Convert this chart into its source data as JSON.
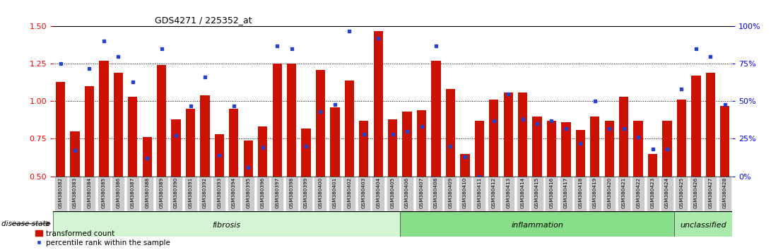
{
  "title": "GDS4271 / 225352_at",
  "samples": [
    "GSM380382",
    "GSM380383",
    "GSM380384",
    "GSM380385",
    "GSM380386",
    "GSM380387",
    "GSM380388",
    "GSM380389",
    "GSM380390",
    "GSM380391",
    "GSM380392",
    "GSM380393",
    "GSM380394",
    "GSM380395",
    "GSM380396",
    "GSM380397",
    "GSM380398",
    "GSM380399",
    "GSM380400",
    "GSM380401",
    "GSM380402",
    "GSM380403",
    "GSM380404",
    "GSM380405",
    "GSM380406",
    "GSM380407",
    "GSM380408",
    "GSM380409",
    "GSM380410",
    "GSM380411",
    "GSM380412",
    "GSM380413",
    "GSM380414",
    "GSM380415",
    "GSM380416",
    "GSM380417",
    "GSM380418",
    "GSM380419",
    "GSM380420",
    "GSM380421",
    "GSM380422",
    "GSM380423",
    "GSM380424",
    "GSM380425",
    "GSM380426",
    "GSM380427",
    "GSM380428"
  ],
  "bar_values": [
    1.13,
    0.8,
    1.1,
    1.27,
    1.19,
    1.03,
    0.76,
    1.24,
    0.88,
    0.95,
    1.04,
    0.78,
    0.95,
    0.74,
    0.83,
    1.25,
    1.25,
    0.82,
    1.21,
    0.96,
    1.14,
    0.87,
    1.47,
    0.88,
    0.93,
    0.94,
    1.27,
    1.08,
    0.65,
    0.87,
    1.01,
    1.06,
    1.06,
    0.9,
    0.87,
    0.86,
    0.81,
    0.9,
    0.87,
    1.03,
    0.87,
    0.65,
    0.87,
    1.01,
    1.17,
    1.19,
    0.97
  ],
  "dot_percentiles": [
    75,
    17,
    72,
    90,
    80,
    63,
    12,
    85,
    27,
    47,
    66,
    14,
    47,
    6,
    19,
    87,
    85,
    20,
    43,
    48,
    97,
    28,
    92,
    28,
    30,
    33,
    87,
    20,
    13,
    0,
    37,
    55,
    38,
    35,
    37,
    32,
    22,
    50,
    32,
    32,
    26,
    18,
    18,
    58,
    85,
    80,
    48
  ],
  "groups": [
    {
      "label": "fibrosis",
      "start": 0,
      "end": 24,
      "color": "#d4f5d4"
    },
    {
      "label": "inflammation",
      "start": 24,
      "end": 43,
      "color": "#88dd88"
    },
    {
      "label": "unclassified",
      "start": 43,
      "end": 47,
      "color": "#aaeaaa"
    }
  ],
  "bar_color": "#cc1100",
  "dot_color": "#2244cc",
  "ylim": [
    0.5,
    1.5
  ],
  "yticks_left": [
    0.5,
    0.75,
    1.0,
    1.25,
    1.5
  ],
  "yticks_right": [
    0,
    25,
    50,
    75,
    100
  ],
  "hlines": [
    0.75,
    1.0,
    1.25
  ],
  "disease_state_label": "disease state",
  "legend_bar": "transformed count",
  "legend_dot": "percentile rank within the sample",
  "bg_color": "#ffffff",
  "xlabel_bg": "#cccccc"
}
